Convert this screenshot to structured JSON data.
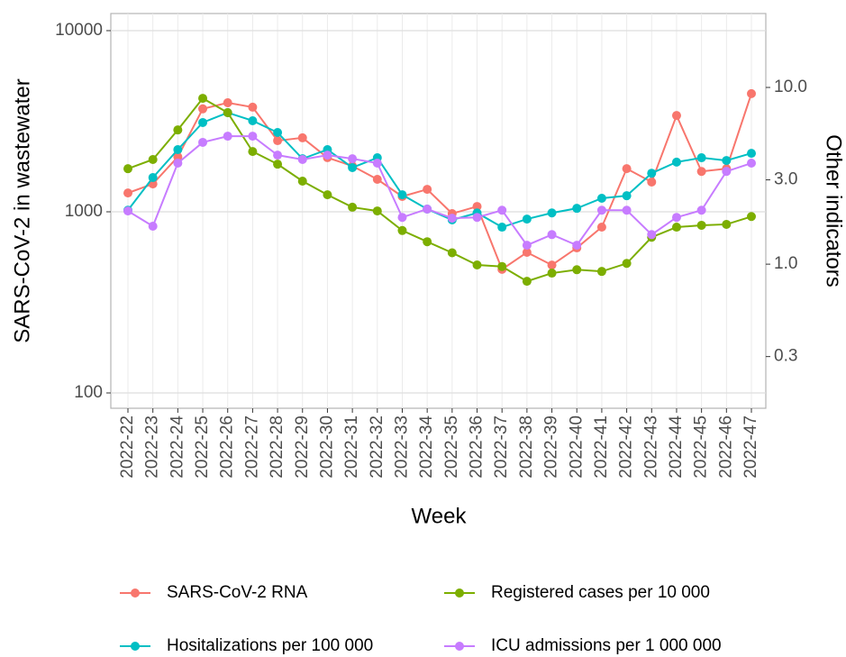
{
  "chart_data": {
    "type": "line",
    "x_label": "Week",
    "y_label": "SARS-CoV-2 in wastewater",
    "y2_label": "Other indicators",
    "y_log": true,
    "y2_log": true,
    "grid": true,
    "legend_position": "bottom",
    "categories": [
      "2022-22",
      "2022-23",
      "2022-24",
      "2022-25",
      "2022-26",
      "2022-27",
      "2022-28",
      "2022-29",
      "2022-30",
      "2022-31",
      "2022-32",
      "2022-33",
      "2022-34",
      "2022-35",
      "2022-36",
      "2022-37",
      "2022-38",
      "2022-39",
      "2022-40",
      "2022-41",
      "2022-42",
      "2022-43",
      "2022-44",
      "2022-45",
      "2022-46",
      "2022-47"
    ],
    "ylim": [
      82.3,
      12430
    ],
    "yticks": [
      100,
      1000,
      10000
    ],
    "y2lim": [
      0.153,
      26.2
    ],
    "y2ticks": [
      0.3,
      {
        "value": 1,
        "label": "1.0"
      },
      {
        "value": 3,
        "label": "3.0"
      },
      {
        "value": 10,
        "label": "10.0"
      }
    ],
    "series": [
      {
        "name": "SARS-CoV-2 RNA",
        "color": "#F8766D",
        "axis": "y",
        "values": [
          1270,
          1425,
          2010,
          3700,
          4000,
          3780,
          2470,
          2560,
          1990,
          1790,
          1510,
          1215,
          1330,
          977,
          1070,
          481,
          597,
          508,
          632,
          823,
          1730,
          1460,
          3400,
          1670,
          1730,
          4490
        ]
      },
      {
        "name": "Hositalizations per 100 000",
        "color": "#00BFC4",
        "axis": "y2",
        "values": [
          2.02,
          3.09,
          4.45,
          6.33,
          7.2,
          6.48,
          5.56,
          3.95,
          4.45,
          3.52,
          4.0,
          2.47,
          2.05,
          1.78,
          1.95,
          1.62,
          1.8,
          1.95,
          2.07,
          2.36,
          2.44,
          3.27,
          3.78,
          4.0,
          3.86,
          4.24
        ]
      },
      {
        "name": "Registered cases per 10 000",
        "color": "#7CAE00",
        "axis": "y2",
        "values": [
          3.47,
          3.91,
          5.75,
          8.68,
          7.2,
          4.34,
          3.68,
          2.95,
          2.47,
          2.1,
          2.0,
          1.55,
          1.34,
          1.16,
          0.99,
          0.97,
          0.8,
          0.89,
          0.93,
          0.91,
          1.01,
          1.42,
          1.62,
          1.66,
          1.68,
          1.86
        ]
      },
      {
        "name": "ICU admissions per 1 000 000",
        "color": "#C77CFF",
        "axis": "y2",
        "values": [
          2.0,
          1.64,
          3.73,
          4.89,
          5.3,
          5.3,
          4.14,
          3.91,
          4.14,
          3.95,
          3.73,
          1.84,
          2.05,
          1.82,
          1.84,
          2.02,
          1.28,
          1.47,
          1.28,
          2.02,
          2.02,
          1.47,
          1.84,
          2.02,
          3.35,
          3.73
        ]
      }
    ]
  }
}
